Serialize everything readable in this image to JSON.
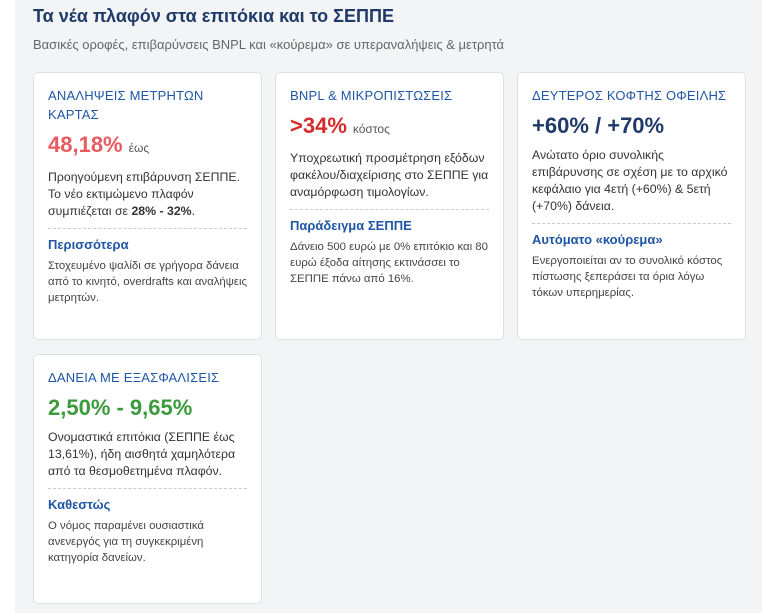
{
  "header": {
    "title": "Τα νέα πλαφόν στα επιτόκια και το ΣΕΠΠΕ",
    "subtitle": "Βασικές οροφές, επιβαρύνσεις BNPL και «κούρεμα» σε υπεραναλήψεις & μετρητά"
  },
  "cards": [
    {
      "heading": "ΑΝΑΛΗΨΕΙΣ ΜΕΤΡΗΤΩΝ ΚΑΡΤΑΣ",
      "value": "48,18%",
      "suffix": "έως",
      "desc": "Προηγούμενη επιβάρυνση ΣΕΠΠΕ. Το νέο εκτιμώμενο πλαφόν συμπιέζεται σε ",
      "desc_bold": "28% - 32%",
      "desc_end": ".",
      "subheading": "Περισσότερα",
      "note": "Στοχευμένο ψαλίδι σε γρήγορα δάνεια από το κινητό, overdrafts και αναλήψεις μετρητών."
    },
    {
      "heading": "BNPL & ΜΙΚΡΟΠΙΣΤΩΣΕΙΣ",
      "value": ">34%",
      "suffix": "κόστος",
      "desc": "Υποχρεωτική προσμέτρηση εξόδων φακέλου/διαχείρισης στο ΣΕΠΠΕ για αναμόρφωση τιμολογίων.",
      "subheading": "Παράδειγμα ΣΕΠΠΕ",
      "note": "Δάνειο 500 ευρώ με 0% επιτόκιο και 80 ευρώ έξοδα αίτησης εκτινάσσει το ΣΕΠΠΕ πάνω από 16%."
    },
    {
      "heading": "ΔΕΥΤΕΡΟΣ ΚΟΦΤΗΣ ΟΦΕΙΛΗΣ",
      "value": "+60% / +70%",
      "desc": "Ανώτατο όριο συνολικής επιβάρυνσης σε σχέση με το αρχικό κεφάλαιο για 4ετή (+60%) & 5ετή (+70%) δάνεια.",
      "subheading": "Αυτόματο «κούρεμα»",
      "note": "Ενεργοποιείται αν το συνολικό κόστος πίστωσης ξεπεράσει τα όρια λόγω τόκων υπερημερίας."
    },
    {
      "heading": "ΔΑΝΕΙΑ ΜΕ ΕΞΑΣΦΑΛΙΣΕΙΣ",
      "value": "2,50% - 9,65%",
      "desc": "Ονομαστικά επιτόκια (ΣΕΠΠΕ έως 13,61%), ήδη αισθητά χαμηλότερα από τα θεσμοθετημένα πλαφόν.",
      "subheading": "Καθεστώς",
      "note": "Ο νόμος παραμένει ουσιαστικά ανενεργός για τη συγκεκριμένη κατηγορία δανείων."
    }
  ]
}
